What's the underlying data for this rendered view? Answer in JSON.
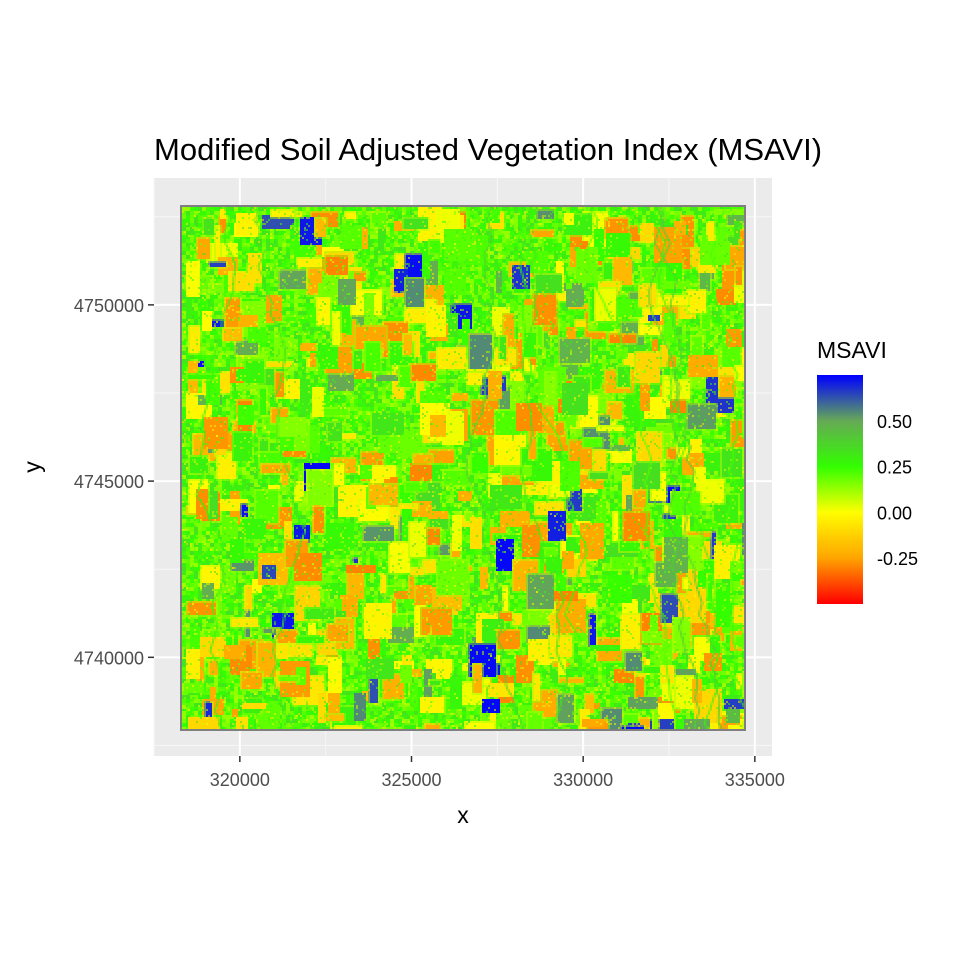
{
  "chart_data": {
    "type": "heatmap",
    "title": "Modified Soil Adjusted Vegetation Index (MSAVI)",
    "xlabel": "x",
    "ylabel": "y",
    "xlim": [
      317500,
      335500
    ],
    "ylim": [
      4737200,
      4753600
    ],
    "raster_extent": {
      "xmin": 318300,
      "xmax": 334400,
      "ymin": 4737800,
      "ymax": 4752800
    },
    "x_ticks": [
      320000,
      325000,
      330000,
      335000
    ],
    "x_tick_labels": [
      "320000",
      "325000",
      "330000",
      "335000"
    ],
    "y_ticks": [
      4740000,
      4745000,
      4750000
    ],
    "y_tick_labels": [
      "4740000",
      "4745000",
      "4750000"
    ],
    "grid": true,
    "legend": {
      "title": "MSAVI",
      "placement": "right",
      "range": [
        -0.5,
        0.75
      ],
      "breaks": [
        0.5,
        0.25,
        0.0,
        -0.25
      ],
      "break_labels": [
        "0.50",
        "0.25",
        "0.00",
        "-0.25"
      ],
      "color_stops": [
        {
          "value": -0.5,
          "color": "#ff0000"
        },
        {
          "value": -0.25,
          "color": "#ffa500"
        },
        {
          "value": 0.0,
          "color": "#ffff00"
        },
        {
          "value": 0.25,
          "color": "#33ff00"
        },
        {
          "value": 0.5,
          "color": "#66aa55"
        },
        {
          "value": 0.75,
          "color": "#0000ff"
        }
      ]
    }
  },
  "colors": {
    "panel_background": "#ebebeb",
    "grid_major": "#ffffff",
    "text": "#000000",
    "tick_text": "#4d4d4d",
    "raster_border": "#7f7f7f"
  }
}
